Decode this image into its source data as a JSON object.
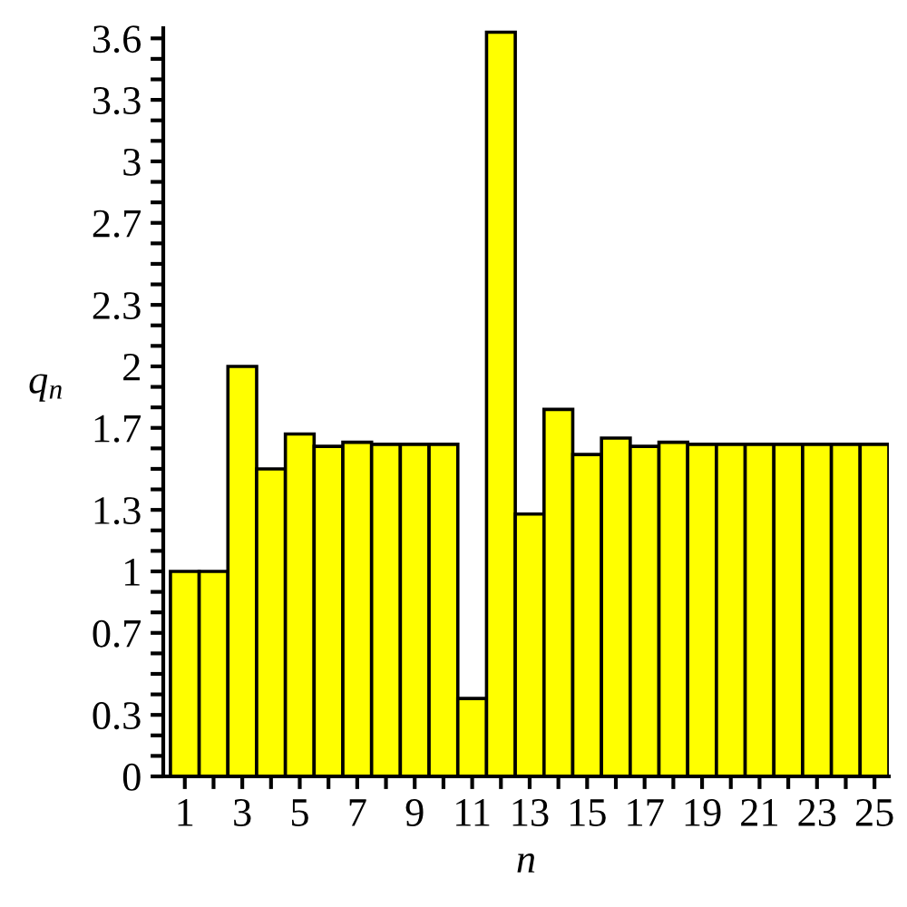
{
  "chart_data": {
    "type": "bar",
    "xlabel": "n",
    "ylabel": "q$_{n}$",
    "x": [
      1,
      2,
      3,
      4,
      5,
      6,
      7,
      8,
      9,
      10,
      11,
      12,
      13,
      14,
      15,
      16,
      17,
      18,
      19,
      20,
      21,
      22,
      23,
      24,
      25
    ],
    "values": [
      1.0,
      1.0,
      2.0,
      1.5,
      1.67,
      1.61,
      1.63,
      1.62,
      1.62,
      1.62,
      0.38,
      3.63,
      1.28,
      1.79,
      1.57,
      1.65,
      1.61,
      1.63,
      1.62,
      1.62,
      1.62,
      1.62,
      1.62,
      1.62,
      1.62
    ],
    "color": "#ffff00",
    "xlim": [
      0.25,
      25.5
    ],
    "ylim": [
      0,
      3.65
    ],
    "xticks": [
      1,
      {
        "value": 2,
        "label": null
      },
      3,
      {
        "value": 4,
        "label": null
      },
      5,
      {
        "value": 6,
        "label": null
      },
      7,
      {
        "value": 8,
        "label": null
      },
      9,
      {
        "value": 10,
        "label": null
      },
      11,
      {
        "value": 12,
        "label": null
      },
      13,
      {
        "value": 14,
        "label": null
      },
      15,
      {
        "value": 16,
        "label": null
      },
      17,
      {
        "value": 18,
        "label": null
      },
      19,
      {
        "value": 20,
        "label": null
      },
      21,
      {
        "value": 22,
        "label": null
      },
      23,
      {
        "value": 24,
        "label": null
      },
      25
    ],
    "yticks": [
      0,
      {
        "value": 0.1,
        "label": null
      },
      {
        "value": 0.2,
        "label": null
      },
      0.3,
      {
        "value": 0.4,
        "label": null
      },
      {
        "value": 0.5,
        "label": null
      },
      {
        "value": 0.6,
        "label": null
      },
      0.7,
      {
        "value": 0.8,
        "label": null
      },
      {
        "value": 0.9,
        "label": null
      },
      1,
      {
        "value": 1.1,
        "label": null
      },
      {
        "value": 1.2,
        "label": null
      },
      1.3,
      {
        "value": 1.4,
        "label": null
      },
      {
        "value": 1.5,
        "label": null
      },
      {
        "value": 1.6,
        "label": null
      },
      1.7,
      {
        "value": 1.8,
        "label": null
      },
      {
        "value": 1.9,
        "label": null
      },
      2,
      {
        "value": 2.1,
        "label": null
      },
      {
        "value": 2.2,
        "label": null
      },
      2.3,
      {
        "value": 2.4,
        "label": null
      },
      {
        "value": 2.5,
        "label": null
      },
      {
        "value": 2.6,
        "label": null
      },
      2.7,
      {
        "value": 2.8,
        "label": null
      },
      {
        "value": 2.9,
        "label": null
      },
      3,
      {
        "value": 3.1,
        "label": null
      },
      {
        "value": 3.2,
        "label": null
      },
      3.3,
      {
        "value": 3.4,
        "label": null
      },
      {
        "value": 3.5,
        "label": null
      },
      3.6
    ],
    "grid": false,
    "legend": false
  }
}
